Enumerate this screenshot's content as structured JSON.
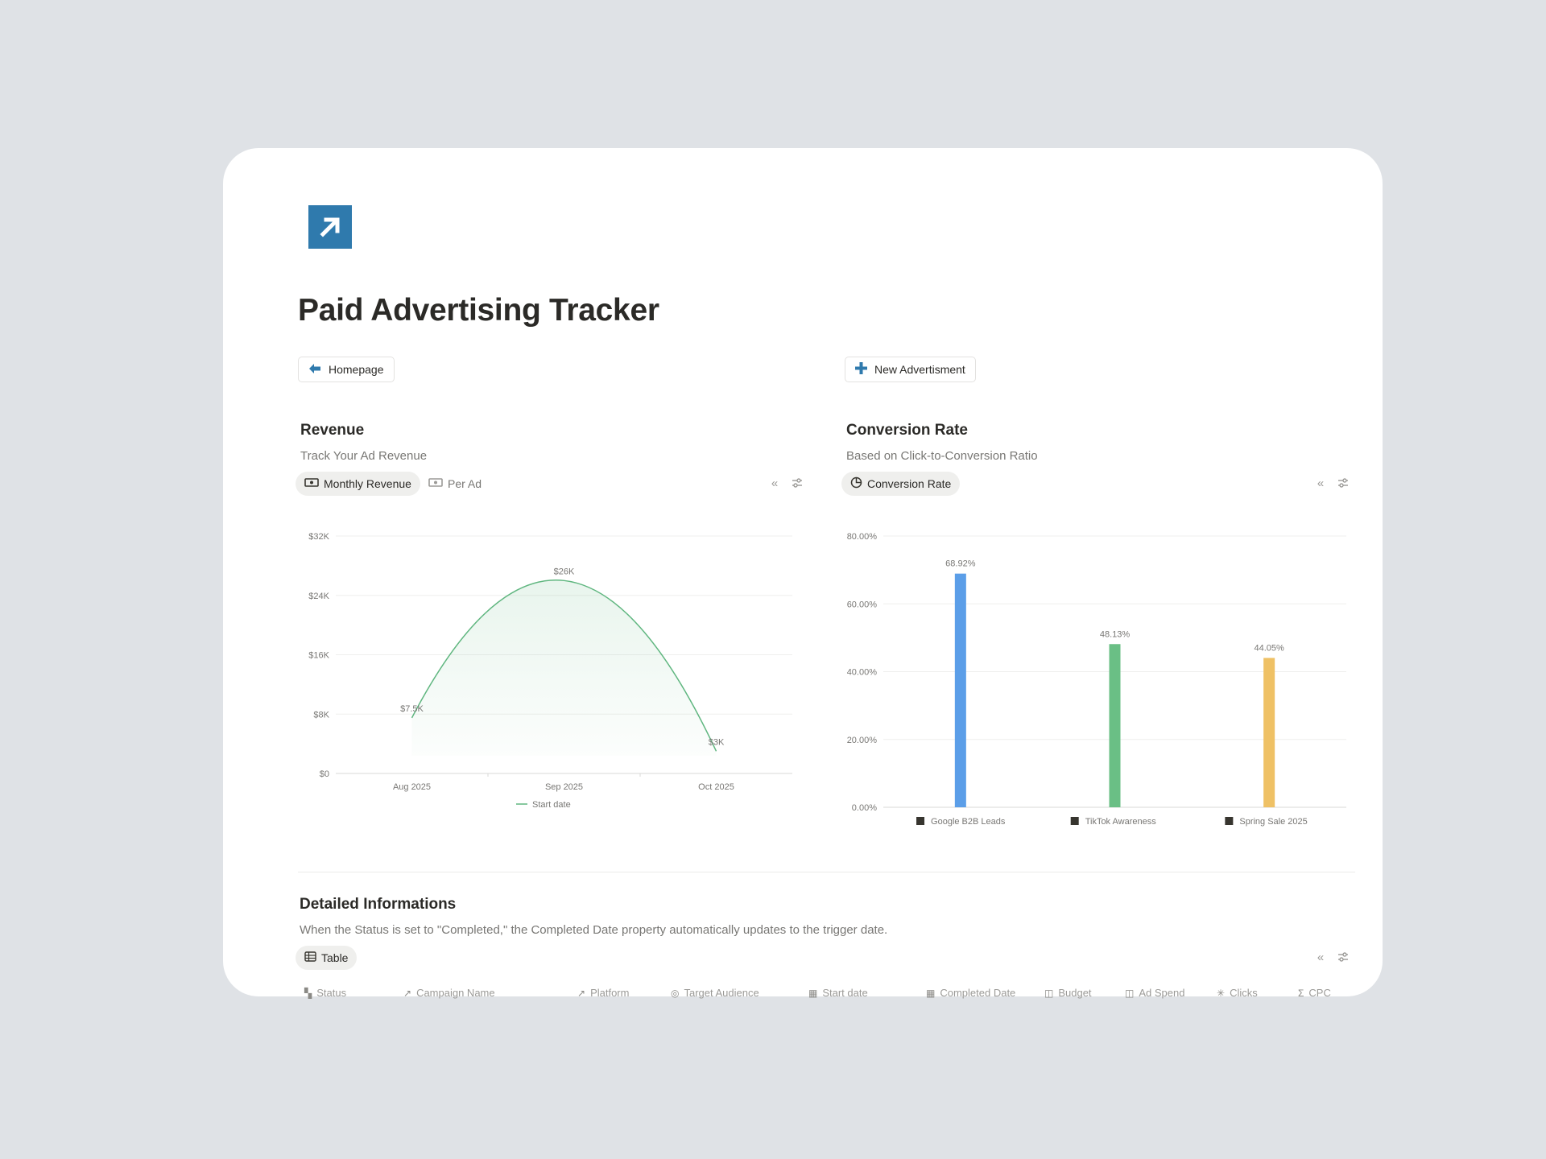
{
  "page": {
    "title": "Paid Advertising Tracker",
    "icon": "arrow-up-right-icon"
  },
  "buttons": {
    "homepage": "Homepage",
    "new_ad": "New Advertisment"
  },
  "revenue": {
    "title": "Revenue",
    "subtitle": "Track Your Ad Revenue",
    "tabs": [
      "Monthly Revenue",
      "Per Ad"
    ]
  },
  "conversion": {
    "title": "Conversion Rate",
    "subtitle": "Based on Click-to-Conversion Ratio",
    "tabs": [
      "Conversion Rate"
    ]
  },
  "chart_data": [
    {
      "type": "area",
      "x": [
        "Aug 2025",
        "Sep 2025",
        "Oct 2025"
      ],
      "series": [
        {
          "name": "Start date",
          "values": [
            7500,
            26000,
            3000
          ],
          "labels": [
            "$7.5K",
            "$26K",
            "$3K"
          ],
          "color": "#5fb67f"
        }
      ],
      "y_ticks": [
        "$0",
        "$8K",
        "$16K",
        "$24K",
        "$32K"
      ],
      "ylim": [
        0,
        32000
      ],
      "grid": true,
      "legend": "bottom"
    },
    {
      "type": "bar",
      "categories": [
        "Google B2B Leads",
        "TikTok Awareness",
        "Spring Sale 2025"
      ],
      "values": [
        68.92,
        48.13,
        44.05
      ],
      "labels": [
        "68.92%",
        "48.13%",
        "44.05%"
      ],
      "colors": [
        "#5b9ee8",
        "#6abf85",
        "#efc165"
      ],
      "y_ticks": [
        "0.00%",
        "20.00%",
        "40.00%",
        "60.00%",
        "80.00%"
      ],
      "ylim": [
        0,
        80
      ],
      "grid": true
    }
  ],
  "details": {
    "title": "Detailed Informations",
    "subtitle": "When the Status is set to \"Completed,\" the Completed Date property automatically updates to the trigger date.",
    "tab": "Table",
    "columns": [
      {
        "label": "Status",
        "icon": "status-icon"
      },
      {
        "label": "Campaign Name",
        "icon": "relation-icon"
      },
      {
        "label": "Platform",
        "icon": "relation-icon"
      },
      {
        "label": "Target Audience",
        "icon": "target-icon"
      },
      {
        "label": "Start date",
        "icon": "calendar-icon"
      },
      {
        "label": "Completed Date",
        "icon": "calendar-icon"
      },
      {
        "label": "Budget",
        "icon": "money-icon"
      },
      {
        "label": "Ad Spend",
        "icon": "money-icon"
      },
      {
        "label": "Clicks",
        "icon": "sparkle-icon"
      },
      {
        "label": "CPC",
        "icon": "sigma-icon"
      }
    ]
  }
}
